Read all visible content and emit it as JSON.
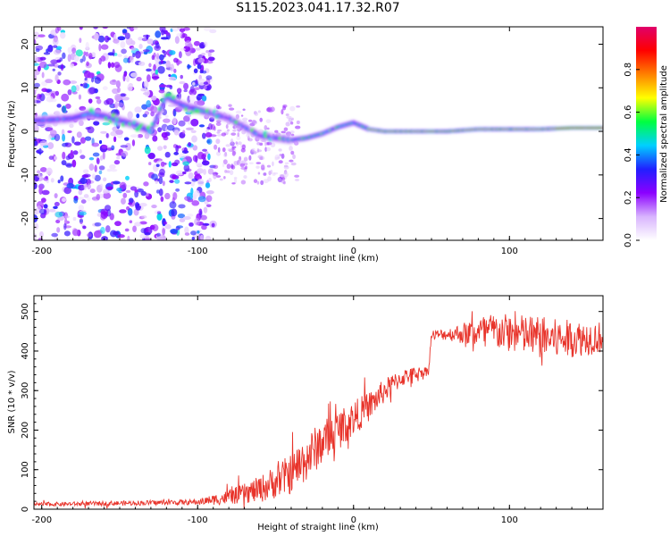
{
  "title": "S115.2023.041.17.32.R07",
  "chart_data": [
    {
      "type": "heatmap",
      "xlabel": "Height of straight line (km)",
      "ylabel": "Frequency (Hz)",
      "xlim": [
        -205,
        160
      ],
      "ylim": [
        -25,
        24
      ],
      "x_ticks": [
        -200,
        -100,
        0,
        100
      ],
      "y_ticks": [
        -20,
        -10,
        0,
        10,
        20
      ],
      "colorbar": {
        "label": "Normalized spectral amplitude",
        "range": [
          0,
          1
        ],
        "ticks": [
          0.0,
          0.2,
          0.4,
          0.6,
          0.8
        ],
        "colors": [
          "#ffffff",
          "#d8b4fe",
          "#8b00ff",
          "#2020ff",
          "#00d0ff",
          "#00ff40",
          "#ffff00",
          "#ff8000",
          "#ff0000",
          "#e0006a"
        ]
      },
      "ridge": [
        {
          "x": -200,
          "y": 2.5
        },
        {
          "x": -180,
          "y": 3.0
        },
        {
          "x": -170,
          "y": 4.0
        },
        {
          "x": -160,
          "y": 3.5
        },
        {
          "x": -150,
          "y": 2.5
        },
        {
          "x": -140,
          "y": 1.5
        },
        {
          "x": -130,
          "y": 0.0
        },
        {
          "x": -120,
          "y": 8.0
        },
        {
          "x": -110,
          "y": 6.0
        },
        {
          "x": -100,
          "y": 5.0
        },
        {
          "x": -90,
          "y": 4.0
        },
        {
          "x": -80,
          "y": 3.0
        },
        {
          "x": -70,
          "y": 1.0
        },
        {
          "x": -60,
          "y": -1.0
        },
        {
          "x": -50,
          "y": -1.5
        },
        {
          "x": -40,
          "y": -2.0
        },
        {
          "x": -30,
          "y": -1.5
        },
        {
          "x": -20,
          "y": -0.5
        },
        {
          "x": -10,
          "y": 1.0
        },
        {
          "x": 0,
          "y": 2.0
        },
        {
          "x": 10,
          "y": 0.5
        },
        {
          "x": 20,
          "y": 0.0
        },
        {
          "x": 40,
          "y": 0.0
        },
        {
          "x": 60,
          "y": 0.0
        },
        {
          "x": 80,
          "y": 0.5
        },
        {
          "x": 100,
          "y": 0.5
        },
        {
          "x": 120,
          "y": 0.5
        },
        {
          "x": 140,
          "y": 0.8
        },
        {
          "x": 160,
          "y": 0.8
        }
      ]
    },
    {
      "type": "line",
      "xlabel": "Height of straight line (km)",
      "ylabel": "SNR (10 * v/v)",
      "xlim": [
        -205,
        160
      ],
      "ylim": [
        0,
        540
      ],
      "x_ticks": [
        -200,
        -100,
        0,
        100
      ],
      "y_ticks": [
        0,
        100,
        200,
        300,
        400,
        500
      ],
      "color": "#e8332a",
      "trend": [
        {
          "x": -205,
          "y": 12
        },
        {
          "x": -150,
          "y": 15
        },
        {
          "x": -100,
          "y": 18
        },
        {
          "x": -80,
          "y": 30
        },
        {
          "x": -60,
          "y": 50
        },
        {
          "x": -40,
          "y": 90
        },
        {
          "x": -30,
          "y": 130
        },
        {
          "x": -20,
          "y": 170
        },
        {
          "x": -10,
          "y": 200
        },
        {
          "x": 0,
          "y": 230
        },
        {
          "x": 10,
          "y": 260
        },
        {
          "x": 20,
          "y": 300
        },
        {
          "x": 30,
          "y": 330
        },
        {
          "x": 40,
          "y": 345
        },
        {
          "x": 48,
          "y": 350
        },
        {
          "x": 50,
          "y": 440
        },
        {
          "x": 70,
          "y": 445
        },
        {
          "x": 90,
          "y": 450
        },
        {
          "x": 110,
          "y": 440
        },
        {
          "x": 130,
          "y": 430
        },
        {
          "x": 160,
          "y": 435
        }
      ],
      "noise_amplitude": [
        {
          "x": -205,
          "y": 5
        },
        {
          "x": -100,
          "y": 7
        },
        {
          "x": -70,
          "y": 25
        },
        {
          "x": -30,
          "y": 60
        },
        {
          "x": 0,
          "y": 45
        },
        {
          "x": 20,
          "y": 30
        },
        {
          "x": 45,
          "y": 12
        },
        {
          "x": 60,
          "y": 15
        },
        {
          "x": 85,
          "y": 45
        },
        {
          "x": 120,
          "y": 55
        },
        {
          "x": 160,
          "y": 40
        }
      ]
    }
  ]
}
